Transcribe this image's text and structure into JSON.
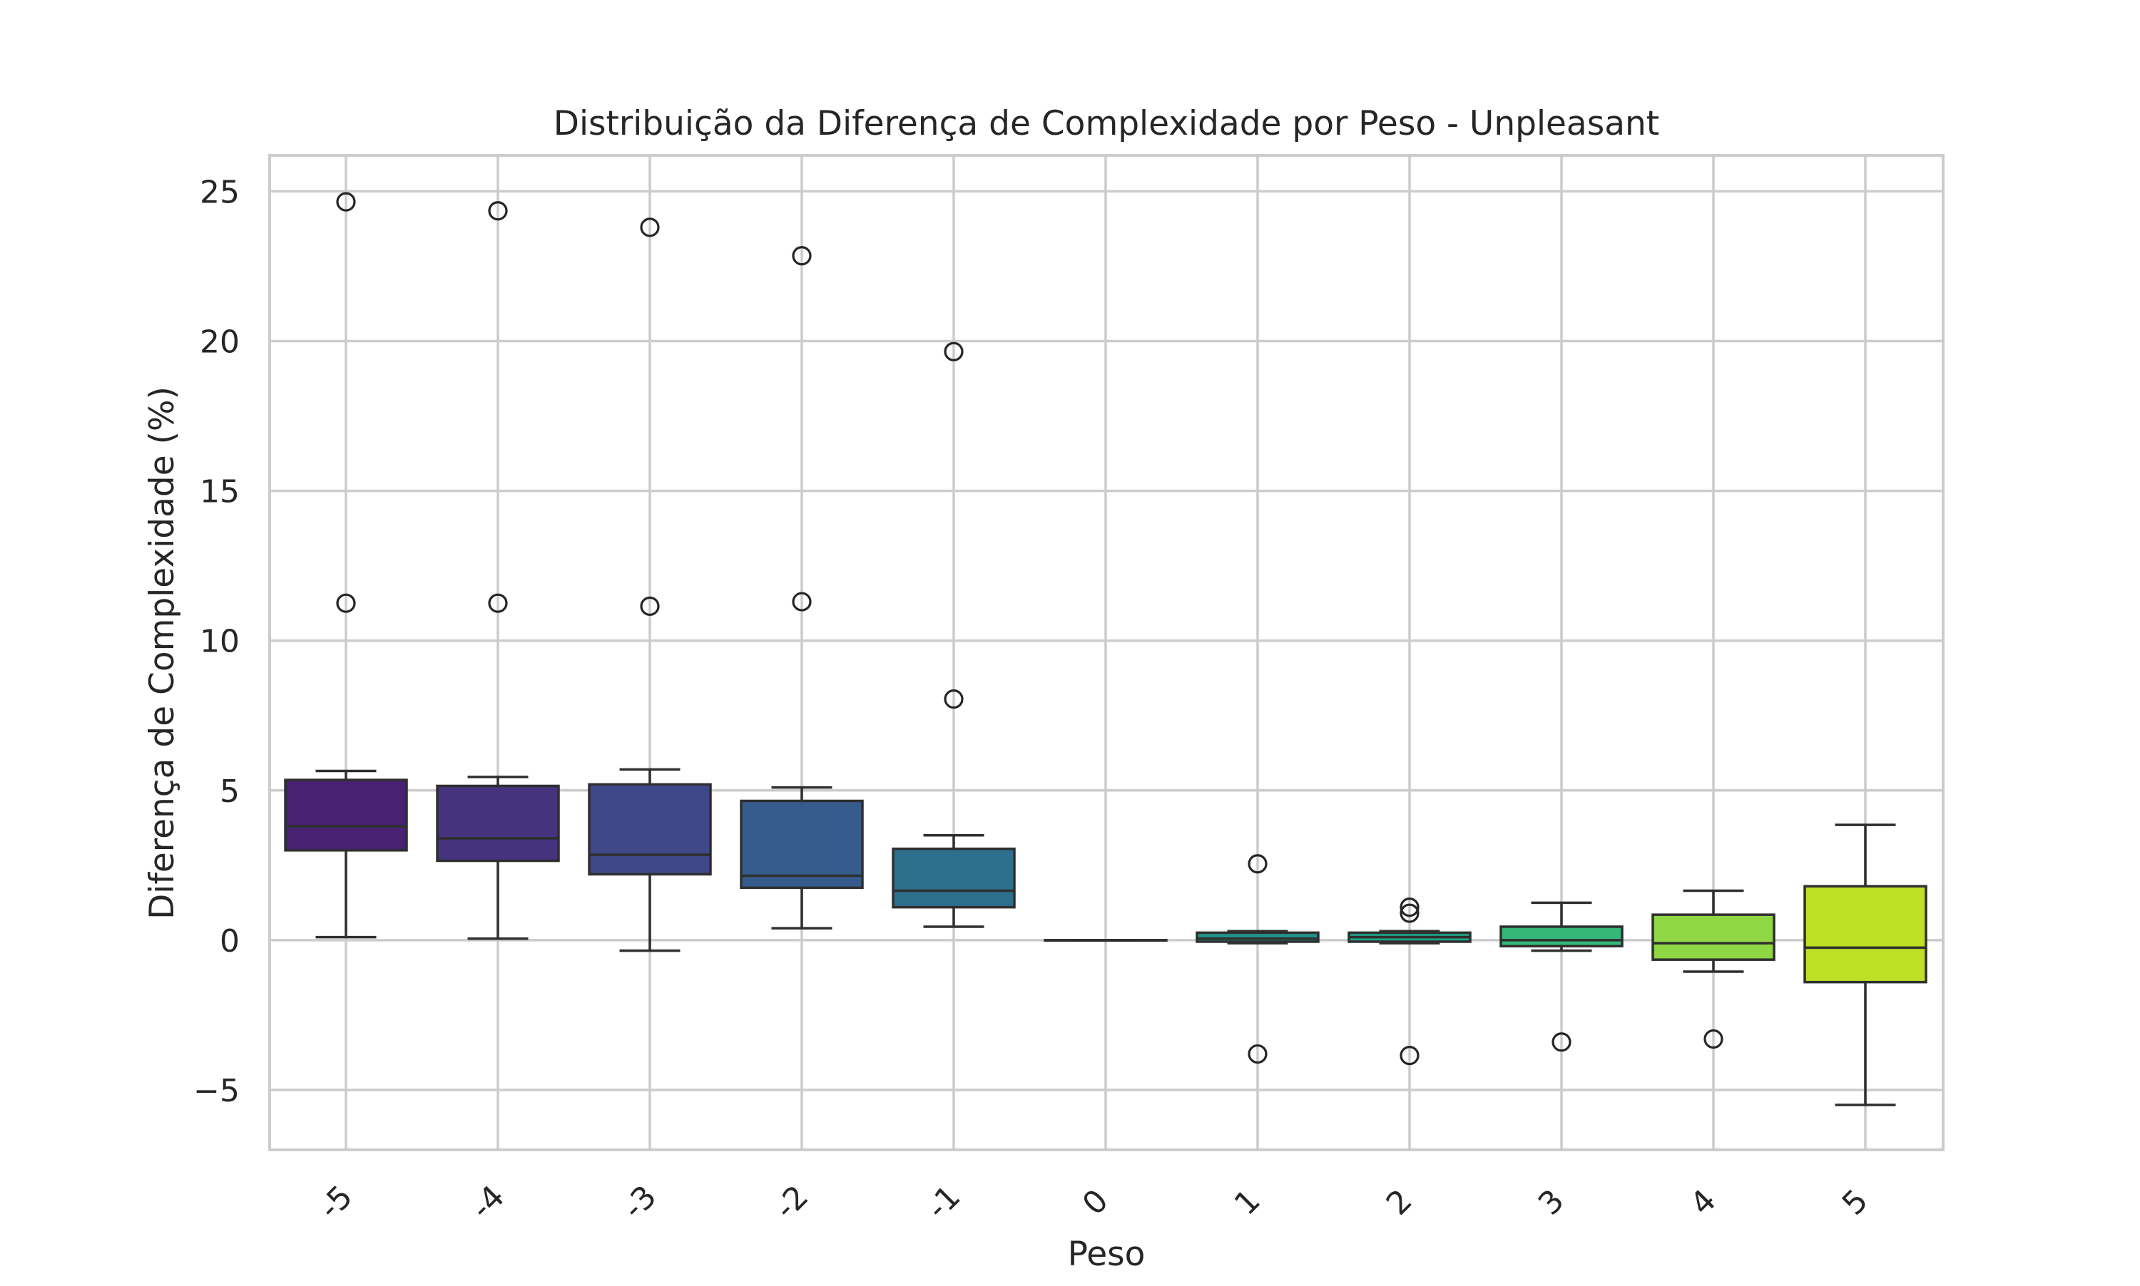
{
  "chart_data": {
    "type": "box",
    "title": "Distribuição da Diferença de Complexidade por Peso - Unpleasant",
    "xlabel": "Peso",
    "ylabel": "Diferença de Complexidade (%)",
    "categories": [
      "-5",
      "-4",
      "-3",
      "-2",
      "-1",
      "0",
      "1",
      "2",
      "3",
      "4",
      "5"
    ],
    "ylim": [
      -7,
      26.2
    ],
    "yticks": [
      -5,
      0,
      5,
      10,
      15,
      20,
      25
    ],
    "ytick_labels": [
      "−5",
      "0",
      "5",
      "10",
      "15",
      "20",
      "25"
    ],
    "grid": true,
    "palette": [
      "#482173",
      "#46337e",
      "#3f4889",
      "#365c8d",
      "#2e6f8e",
      "#277f8e",
      "#21918c",
      "#1fa187",
      "#35b779",
      "#8fd744",
      "#bddf26"
    ],
    "boxes": [
      {
        "category": "-5",
        "whisker_low": 0.1,
        "q1": 3.0,
        "median": 3.8,
        "q3": 5.35,
        "whisker_high": 5.65,
        "outliers": [
          11.25,
          24.65
        ]
      },
      {
        "category": "-4",
        "whisker_low": 0.05,
        "q1": 2.65,
        "median": 3.4,
        "q3": 5.15,
        "whisker_high": 5.45,
        "outliers": [
          11.25,
          24.35
        ]
      },
      {
        "category": "-3",
        "whisker_low": -0.35,
        "q1": 2.2,
        "median": 2.85,
        "q3": 5.2,
        "whisker_high": 5.7,
        "outliers": [
          11.15,
          23.8
        ]
      },
      {
        "category": "-2",
        "whisker_low": 0.4,
        "q1": 1.75,
        "median": 2.15,
        "q3": 4.65,
        "whisker_high": 5.1,
        "outliers": [
          11.3,
          22.85
        ]
      },
      {
        "category": "-1",
        "whisker_low": 0.45,
        "q1": 1.1,
        "median": 1.65,
        "q3": 3.05,
        "whisker_high": 3.5,
        "outliers": [
          8.05,
          19.65
        ]
      },
      {
        "category": "0",
        "whisker_low": 0.0,
        "q1": 0.0,
        "median": 0.0,
        "q3": 0.0,
        "whisker_high": 0.0,
        "outliers": []
      },
      {
        "category": "1",
        "whisker_low": -0.1,
        "q1": -0.05,
        "median": 0.05,
        "q3": 0.25,
        "whisker_high": 0.3,
        "outliers": [
          2.55,
          -3.8
        ]
      },
      {
        "category": "2",
        "whisker_low": -0.1,
        "q1": -0.05,
        "median": 0.1,
        "q3": 0.25,
        "whisker_high": 0.3,
        "outliers": [
          1.1,
          0.9,
          -3.85
        ]
      },
      {
        "category": "3",
        "whisker_low": -0.35,
        "q1": -0.2,
        "median": 0.0,
        "q3": 0.45,
        "whisker_high": 1.25,
        "outliers": [
          -3.4
        ]
      },
      {
        "category": "4",
        "whisker_low": -1.05,
        "q1": -0.65,
        "median": -0.1,
        "q3": 0.85,
        "whisker_high": 1.65,
        "outliers": [
          -3.3
        ]
      },
      {
        "category": "5",
        "whisker_low": -5.5,
        "q1": -1.4,
        "median": -0.25,
        "q3": 1.8,
        "whisker_high": 3.85,
        "outliers": []
      }
    ]
  }
}
